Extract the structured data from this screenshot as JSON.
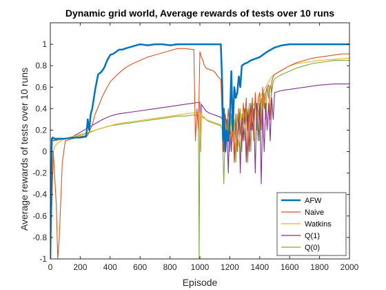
{
  "chart_data": {
    "type": "line",
    "title": "Dynamic grid world, Average rewards of tests over 10 runs",
    "xlabel": "Episode",
    "ylabel": "Average rewards of tests over 10 runs",
    "xlim": [
      0,
      2000
    ],
    "ylim": [
      -1,
      1.2
    ],
    "xticks": [
      "0",
      "200",
      "400",
      "600",
      "800",
      "1000",
      "1200",
      "1400",
      "1600",
      "1800",
      "2000"
    ],
    "yticks": [
      "-1",
      "-0.8",
      "-0.6",
      "-0.4",
      "-0.2",
      "0",
      "0.2",
      "0.4",
      "0.6",
      "0.8",
      "1"
    ],
    "grid": false,
    "legend_position": "bottom-right",
    "series": [
      {
        "name": "AFW",
        "color": "#0072BD",
        "x": [
          0,
          10,
          15,
          30,
          60,
          100,
          150,
          200,
          240,
          250,
          260,
          270,
          280,
          300,
          320,
          340,
          360,
          380,
          400,
          420,
          440,
          460,
          480,
          500,
          550,
          600,
          650,
          700,
          750,
          800,
          850,
          900,
          950,
          1000,
          1050,
          1100,
          1140,
          1150,
          1155,
          1160,
          1170,
          1180,
          1190,
          1200,
          1210,
          1220,
          1230,
          1240,
          1250,
          1260,
          1270,
          1280,
          1300,
          1320,
          1340,
          1360,
          1380,
          1400,
          1420,
          1450,
          1500,
          1550,
          1600,
          1650,
          1700,
          1800,
          1900,
          2000
        ],
        "y": [
          -1,
          0.12,
          0.13,
          0.12,
          0.12,
          0.12,
          0.13,
          0.13,
          0.14,
          0.3,
          0.2,
          0.35,
          0.4,
          0.58,
          0.72,
          0.74,
          0.78,
          0.85,
          0.9,
          0.91,
          0.93,
          0.95,
          0.95,
          0.96,
          0.98,
          1.0,
          0.99,
          1.0,
          1.0,
          0.99,
          1.0,
          1.0,
          1.0,
          1.0,
          1.0,
          1.0,
          1.0,
          0.6,
          0.1,
          0.4,
          0.0,
          0.2,
          0.1,
          0.3,
          0.75,
          0.2,
          0.6,
          0.5,
          0.55,
          0.7,
          0.6,
          0.8,
          0.82,
          0.83,
          0.85,
          0.86,
          0.87,
          0.88,
          0.9,
          0.93,
          0.97,
          0.99,
          1.0,
          1.0,
          1.0,
          1.0,
          1.0,
          1.0
        ]
      },
      {
        "name": "Naive",
        "color": "#D95319",
        "x": [
          0,
          20,
          40,
          50,
          60,
          80,
          100,
          150,
          200,
          250,
          280,
          300,
          330,
          350,
          380,
          400,
          450,
          500,
          550,
          600,
          650,
          700,
          750,
          800,
          850,
          900,
          960,
          970,
          980,
          990,
          1000,
          1010,
          1020,
          1030,
          1040,
          1050,
          1060,
          1070,
          1080,
          1090,
          1100,
          1120,
          1140,
          1150,
          1160,
          1170,
          1180,
          1190,
          1200,
          1210,
          1220,
          1230,
          1240,
          1250,
          1260,
          1270,
          1280,
          1290,
          1300,
          1310,
          1320,
          1330,
          1340,
          1350,
          1360,
          1370,
          1380,
          1390,
          1400,
          1410,
          1420,
          1430,
          1440,
          1450,
          1460,
          1470,
          1480,
          1490,
          1500,
          1550,
          1600,
          1650,
          1700,
          1750,
          1800,
          1850,
          1900,
          1950,
          2000
        ],
        "y": [
          -1,
          0.0,
          -0.5,
          -1,
          -0.8,
          -0.1,
          0.1,
          0.12,
          0.14,
          0.15,
          0.25,
          0.35,
          0.45,
          0.52,
          0.6,
          0.65,
          0.72,
          0.78,
          0.82,
          0.85,
          0.88,
          0.9,
          0.92,
          0.94,
          0.96,
          0.96,
          0.95,
          0.1,
          0.4,
          0.2,
          0.93,
          0.88,
          0.85,
          0.8,
          0.78,
          0.77,
          0.77,
          0.76,
          0.76,
          0.75,
          0.74,
          0.7,
          0.67,
          0.3,
          0.0,
          0.35,
          0.2,
          0.4,
          0.2,
          0.1,
          0.3,
          -0.1,
          0.35,
          0.0,
          0.4,
          0.2,
          0.1,
          0.45,
          0.3,
          0.5,
          -0.1,
          0.4,
          0.2,
          0.5,
          0.1,
          0.55,
          0.3,
          0.5,
          0.55,
          0.2,
          0.6,
          0.4,
          0.55,
          0.6,
          0.62,
          0.3,
          0.65,
          0.7,
          0.72,
          0.76,
          0.8,
          0.83,
          0.85,
          0.87,
          0.88,
          0.89,
          0.9,
          0.91,
          0.91
        ]
      },
      {
        "name": "Watkins",
        "color": "#EDB120",
        "x": [
          0,
          20,
          30,
          50,
          70,
          100,
          150,
          200,
          250,
          300,
          350,
          400,
          450,
          500,
          550,
          600,
          650,
          700,
          750,
          800,
          850,
          900,
          950,
          1000,
          1005,
          1010,
          1020,
          1030,
          1040,
          1060,
          1080,
          1100,
          1120,
          1140,
          1150,
          1160,
          1170,
          1180,
          1200,
          1220,
          1240,
          1260,
          1280,
          1300,
          1320,
          1340,
          1360,
          1380,
          1400,
          1420,
          1440,
          1460,
          1480,
          1500,
          1550,
          1600,
          1650,
          1700,
          1750,
          1800,
          1900,
          2000
        ],
        "y": [
          -1,
          0.0,
          0.05,
          0.08,
          0.1,
          0.12,
          0.14,
          0.16,
          0.18,
          0.2,
          0.22,
          0.24,
          0.26,
          0.27,
          0.28,
          0.29,
          0.3,
          0.31,
          0.32,
          0.33,
          0.34,
          0.35,
          0.36,
          0.37,
          0.0,
          0.35,
          0.33,
          0.32,
          0.3,
          0.29,
          0.28,
          0.27,
          0.26,
          0.25,
          0.2,
          0.1,
          0.3,
          0.15,
          0.25,
          0.1,
          0.3,
          0.05,
          0.35,
          0.2,
          0.4,
          0.3,
          0.45,
          0.35,
          0.5,
          0.55,
          0.6,
          0.65,
          0.7,
          0.72,
          0.76,
          0.8,
          0.82,
          0.83,
          0.84,
          0.85,
          0.86,
          0.87
        ]
      },
      {
        "name": "Q(1)",
        "color": "#7E2F8E",
        "x": [
          0,
          10,
          20,
          40,
          60,
          100,
          150,
          200,
          250,
          300,
          350,
          400,
          450,
          500,
          550,
          600,
          650,
          700,
          750,
          800,
          850,
          900,
          950,
          1000,
          1005,
          1010,
          1020,
          1030,
          1040,
          1060,
          1080,
          1100,
          1120,
          1140,
          1150,
          1155,
          1160,
          1170,
          1180,
          1190,
          1200,
          1210,
          1220,
          1230,
          1240,
          1250,
          1260,
          1270,
          1280,
          1290,
          1300,
          1310,
          1320,
          1330,
          1340,
          1350,
          1360,
          1370,
          1380,
          1390,
          1400,
          1410,
          1420,
          1430,
          1440,
          1450,
          1460,
          1470,
          1480,
          1490,
          1500,
          1550,
          1600,
          1700,
          1800,
          1900,
          2000
        ],
        "y": [
          -1,
          0.1,
          0.1,
          0.11,
          0.12,
          0.12,
          0.14,
          0.18,
          0.22,
          0.26,
          0.3,
          0.33,
          0.35,
          0.36,
          0.37,
          0.38,
          0.39,
          0.4,
          0.41,
          0.42,
          0.43,
          0.44,
          0.45,
          0.46,
          0.0,
          0.44,
          0.42,
          0.4,
          0.38,
          0.36,
          0.35,
          0.34,
          0.33,
          0.32,
          0.3,
          0.0,
          0.35,
          0.1,
          0.3,
          -0.2,
          0.3,
          0.0,
          0.35,
          -0.1,
          0.3,
          0.0,
          0.4,
          -0.2,
          0.35,
          0.1,
          0.4,
          -0.1,
          0.4,
          0.0,
          0.45,
          0.2,
          0.4,
          -0.2,
          0.45,
          0.1,
          0.45,
          -0.3,
          0.4,
          0.0,
          0.45,
          0.2,
          0.45,
          0.1,
          0.5,
          0.3,
          0.55,
          0.57,
          0.58,
          0.6,
          0.62,
          0.63,
          0.63
        ]
      },
      {
        "name": "Q(0)",
        "color": "#77AC30",
        "x": [
          0,
          10,
          20,
          40,
          60,
          100,
          150,
          200,
          250,
          300,
          350,
          400,
          450,
          500,
          550,
          600,
          650,
          700,
          750,
          800,
          850,
          900,
          950,
          990,
          995,
          1000,
          1005,
          1010,
          1020,
          1040,
          1060,
          1080,
          1100,
          1120,
          1140,
          1150,
          1160,
          1170,
          1180,
          1190,
          1200,
          1210,
          1220,
          1230,
          1240,
          1250,
          1260,
          1270,
          1280,
          1290,
          1300,
          1310,
          1320,
          1330,
          1340,
          1350,
          1360,
          1370,
          1380,
          1390,
          1400,
          1410,
          1420,
          1430,
          1440,
          1450,
          1460,
          1470,
          1480,
          1490,
          1500,
          1550,
          1600,
          1650,
          1700,
          1750,
          1800,
          1850,
          1900,
          1950,
          2000
        ],
        "y": [
          -1,
          0.12,
          0.11,
          0.1,
          0.11,
          0.12,
          0.13,
          0.15,
          0.17,
          0.2,
          0.22,
          0.24,
          0.25,
          0.26,
          0.27,
          0.28,
          0.29,
          0.3,
          0.31,
          0.32,
          0.33,
          0.33,
          0.34,
          0.34,
          -1.0,
          0.33,
          0.0,
          0.33,
          0.32,
          0.3,
          0.28,
          0.27,
          0.26,
          0.25,
          0.24,
          0.2,
          -0.3,
          0.25,
          0.1,
          0.3,
          0.0,
          0.35,
          0.1,
          0.3,
          -0.1,
          0.35,
          0.2,
          0.4,
          0.0,
          0.35,
          0.1,
          0.4,
          0.2,
          0.45,
          0.0,
          0.4,
          0.3,
          0.5,
          0.2,
          0.45,
          0.1,
          0.5,
          0.4,
          0.55,
          0.3,
          0.6,
          0.5,
          0.62,
          0.55,
          0.65,
          0.68,
          0.72,
          0.75,
          0.78,
          0.8,
          0.82,
          0.83,
          0.84,
          0.85,
          0.85,
          0.85
        ]
      }
    ]
  }
}
